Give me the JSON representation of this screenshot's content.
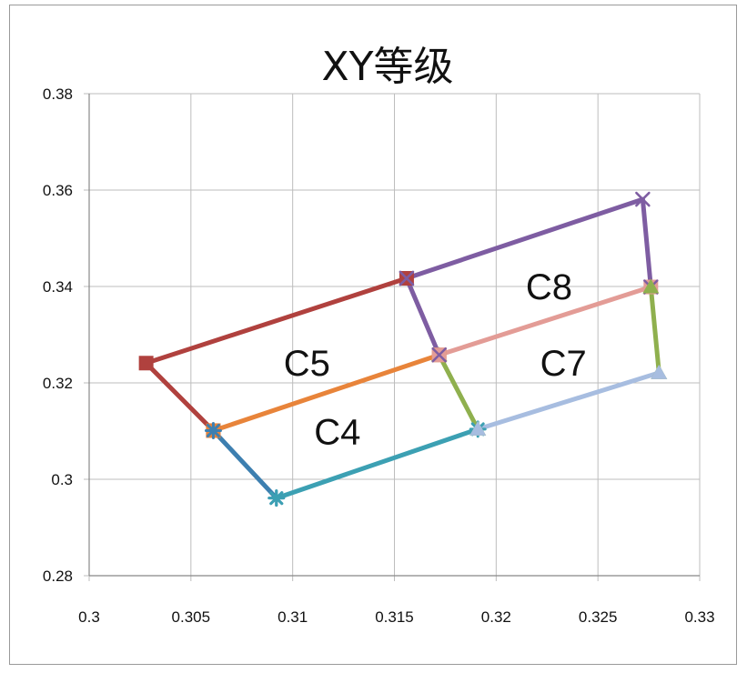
{
  "chart_data": {
    "type": "line",
    "title": "XY等级",
    "xlabel": "",
    "ylabel": "",
    "xlim": [
      0.3,
      0.33
    ],
    "ylim": [
      0.28,
      0.38
    ],
    "x_ticks": [
      0.3,
      0.305,
      0.31,
      0.315,
      0.32,
      0.325,
      0.33
    ],
    "x_tick_labels": [
      "0.3",
      "0.305",
      "0.31",
      "0.315",
      "0.32",
      "0.325",
      "0.33"
    ],
    "y_ticks": [
      0.28,
      0.3,
      0.32,
      0.34,
      0.36,
      0.38
    ],
    "y_tick_labels": [
      "0.28",
      "0.3",
      "0.32",
      "0.34",
      "0.36",
      "0.38"
    ],
    "grid": true,
    "legend": "none",
    "series": [
      {
        "color": "#b0413e",
        "marker": "square",
        "points": [
          [
            0.3156,
            0.3417
          ],
          [
            0.3028,
            0.3241
          ],
          [
            0.3061,
            0.3101
          ]
        ]
      },
      {
        "color": "#e8843a",
        "marker": "square",
        "points": [
          [
            0.3061,
            0.3101
          ],
          [
            0.3172,
            0.3258
          ]
        ]
      },
      {
        "color": "#3d7fb0",
        "marker": "star",
        "points": [
          [
            0.3061,
            0.3101
          ],
          [
            0.3092,
            0.2961
          ]
        ]
      },
      {
        "color": "#3ca0b3",
        "marker": "star",
        "points": [
          [
            0.3092,
            0.2961
          ],
          [
            0.3191,
            0.3104
          ]
        ]
      },
      {
        "color": "#8fb04e",
        "marker": "triangle",
        "points": [
          [
            0.3172,
            0.3258
          ],
          [
            0.3191,
            0.3104
          ]
        ]
      },
      {
        "color": "#e39c96",
        "marker": "square",
        "points": [
          [
            0.3172,
            0.3258
          ],
          [
            0.3276,
            0.3399
          ]
        ]
      },
      {
        "color": "#7e5da2",
        "marker": "x",
        "points": [
          [
            0.3156,
            0.3417
          ],
          [
            0.3172,
            0.3258
          ]
        ]
      },
      {
        "color": "#7e5da2",
        "marker": "x",
        "points": [
          [
            0.3156,
            0.3417
          ],
          [
            0.3272,
            0.3581
          ],
          [
            0.3276,
            0.3399
          ]
        ]
      },
      {
        "color": "#8fb04e",
        "marker": "triangle",
        "points": [
          [
            0.3276,
            0.3399
          ],
          [
            0.328,
            0.3221
          ]
        ]
      },
      {
        "color": "#a7bde0",
        "marker": "triangle",
        "points": [
          [
            0.3191,
            0.3104
          ],
          [
            0.328,
            0.3221
          ]
        ]
      }
    ],
    "annotations": [
      {
        "text": "C5",
        "x": 0.3107,
        "y": 0.3215
      },
      {
        "text": "C4",
        "x": 0.3122,
        "y": 0.3073
      },
      {
        "text": "C8",
        "x": 0.3226,
        "y": 0.3374
      },
      {
        "text": "C7",
        "x": 0.3233,
        "y": 0.3215
      }
    ]
  }
}
